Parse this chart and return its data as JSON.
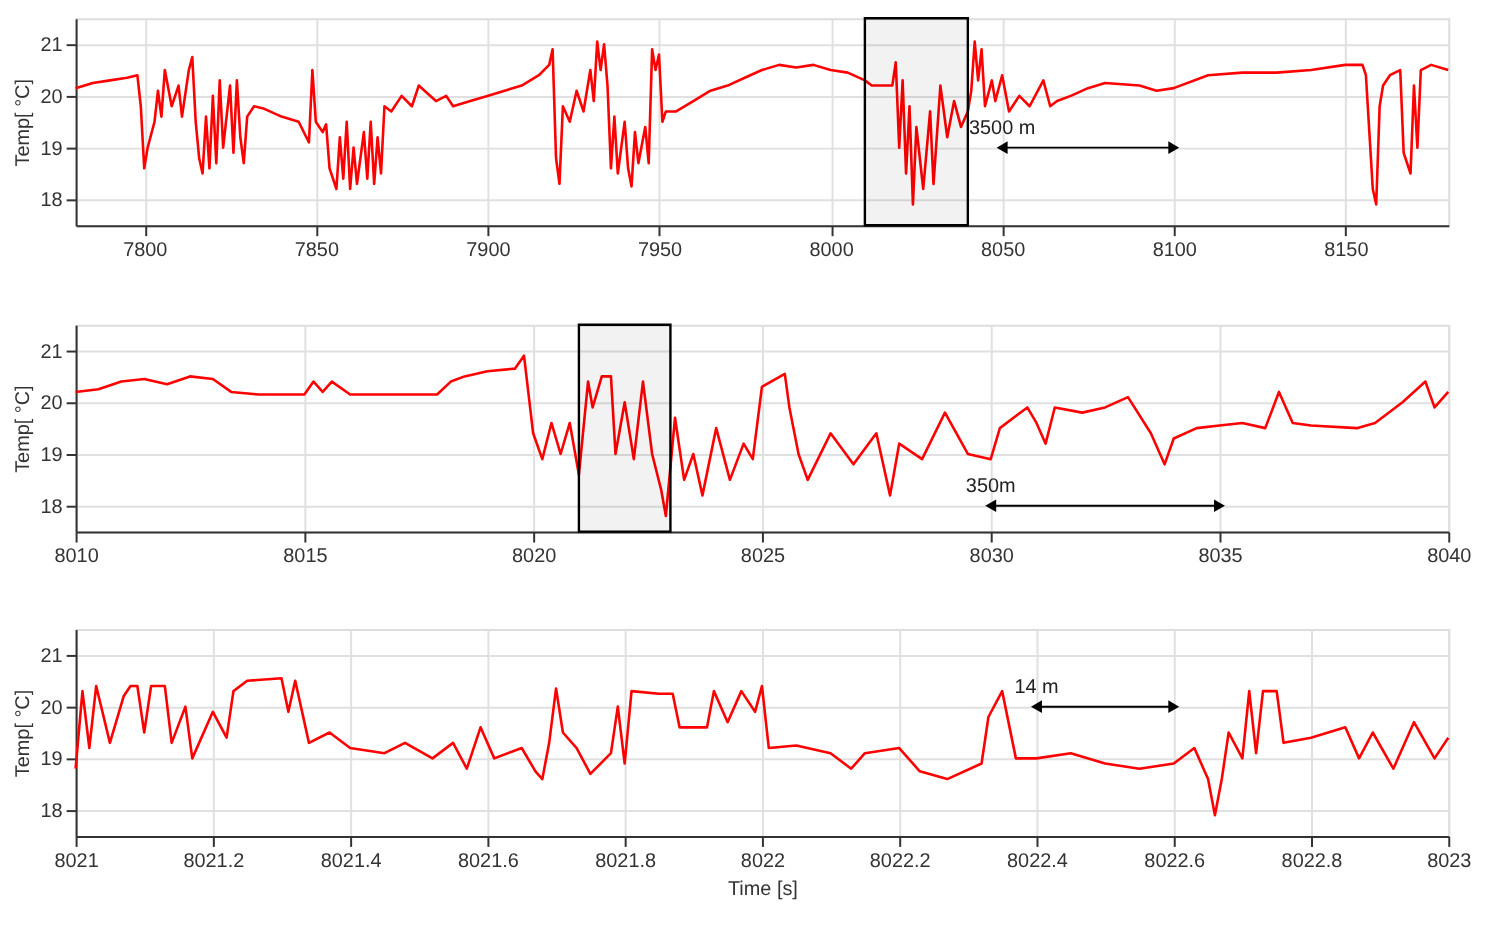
{
  "chart_data": [
    {
      "type": "line",
      "ylabel": "Temp[  °C]",
      "xlim": [
        7780,
        8180
      ],
      "xticks": [
        7800,
        7850,
        7900,
        7950,
        8000,
        8050,
        8100,
        8150
      ],
      "ylim": [
        17.5,
        21.5
      ],
      "yticks": [
        18,
        19,
        20,
        21
      ],
      "grid": true,
      "line_style": "solid",
      "series": [
        {
          "color": "#ff0000",
          "x": [
            7780,
            7785,
            7790,
            7795,
            7798,
            7799,
            7800,
            7801,
            7803,
            7804,
            7805,
            7806,
            7808,
            7810,
            7811,
            7813,
            7814,
            7815,
            7816,
            7817,
            7818,
            7819,
            7820,
            7821,
            7822,
            7823,
            7825,
            7826,
            7827,
            7828,
            7829,
            7830,
            7832,
            7835,
            7840,
            7845,
            7848,
            7849,
            7850,
            7852,
            7853,
            7854,
            7856,
            7857,
            7858,
            7859,
            7860,
            7861,
            7862,
            7864,
            7865,
            7866,
            7867,
            7868,
            7869,
            7870,
            7872,
            7875,
            7878,
            7880,
            7885,
            7888,
            7890,
            7895,
            7900,
            7905,
            7910,
            7915,
            7918,
            7919,
            7920,
            7921,
            7922,
            7924,
            7926,
            7928,
            7930,
            7931,
            7932,
            7933,
            7934,
            7935,
            7936,
            7937,
            7938,
            7940,
            7941,
            7942,
            7943,
            7944,
            7946,
            7947,
            7948,
            7949,
            7950,
            7951,
            7952,
            7955,
            7960,
            7965,
            7970,
            7975,
            7980,
            7985,
            7990,
            7995,
            8000,
            8005,
            8010,
            8012,
            8018,
            8019,
            8020,
            8021,
            8022,
            8023,
            8024,
            8025,
            8027,
            8029,
            8030,
            8032,
            8034,
            8036,
            8038,
            8040,
            8041,
            8042,
            8043,
            8044,
            8045,
            8047,
            8048,
            8050,
            8052,
            8055,
            8058,
            8062,
            8064,
            8066,
            8070,
            8075,
            8080,
            8090,
            8095,
            8100,
            8110,
            8120,
            8130,
            8140,
            8150,
            8155,
            8156,
            8158,
            8159,
            8160,
            8161,
            8163,
            8166,
            8167,
            8169,
            8170,
            8171,
            8172,
            8175,
            8180
          ],
          "values": [
            20.15,
            20.25,
            20.3,
            20.35,
            20.4,
            19.8,
            18.6,
            19.0,
            19.5,
            20.1,
            19.6,
            20.5,
            19.8,
            20.2,
            19.6,
            20.5,
            20.75,
            19.5,
            18.8,
            18.5,
            19.6,
            18.6,
            20.0,
            18.7,
            20.3,
            19.0,
            20.2,
            18.9,
            20.3,
            19.2,
            18.7,
            19.6,
            19.8,
            19.75,
            19.6,
            19.5,
            19.1,
            20.5,
            19.5,
            19.3,
            19.45,
            18.6,
            18.2,
            19.2,
            18.4,
            19.5,
            18.2,
            19.0,
            18.3,
            19.3,
            18.4,
            19.5,
            18.3,
            19.2,
            18.5,
            19.8,
            19.7,
            20.0,
            19.8,
            20.2,
            19.9,
            20.0,
            19.8,
            19.9,
            20.0,
            20.1,
            20.2,
            20.4,
            20.6,
            20.9,
            18.8,
            18.3,
            19.8,
            19.5,
            20.1,
            19.7,
            20.5,
            19.9,
            21.05,
            20.5,
            21.0,
            20.2,
            18.6,
            19.6,
            18.5,
            19.5,
            18.6,
            18.25,
            19.3,
            18.7,
            19.4,
            18.7,
            20.9,
            20.5,
            20.8,
            19.5,
            19.7,
            19.7,
            19.9,
            20.1,
            20.2,
            20.35,
            20.5,
            20.6,
            20.55,
            20.6,
            20.5,
            20.45,
            20.3,
            20.2,
            20.2,
            20.65,
            19.0,
            20.3,
            18.5,
            19.8,
            17.9,
            19.4,
            18.2,
            19.7,
            18.3,
            20.2,
            19.2,
            19.9,
            19.4,
            19.7,
            20.1,
            21.05,
            20.3,
            20.9,
            19.8,
            20.3,
            19.9,
            20.4,
            19.7,
            20.0,
            19.8,
            20.3,
            19.8,
            19.9,
            20.0,
            20.15,
            20.25,
            20.2,
            20.1,
            20.15,
            20.4,
            20.45,
            20.45,
            20.5,
            20.6,
            20.6,
            20.4,
            18.2,
            17.9,
            19.8,
            20.2,
            20.4,
            20.5,
            18.9,
            18.5,
            20.2,
            19.0,
            20.5,
            20.6,
            20.5
          ]
        },
        {
          "type": "line",
          "color": "#000000",
          "marker": "triangle",
          "x": [
            8050,
            8100
          ],
          "values": [
            19,
            19
          ]
        }
      ],
      "bands": [
        {
          "axis": "x",
          "from": 8010,
          "to": 8040,
          "color": "#000000"
        }
      ],
      "annotations": [
        {
          "text": "3500 m",
          "x": 8050,
          "y": 19
        }
      ]
    },
    {
      "type": "line",
      "ylabel": "Temp[  °C]",
      "xlim": [
        8010,
        8040
      ],
      "xticks": [
        8010,
        8015,
        8020,
        8025,
        8030,
        8035,
        8040
      ],
      "ylim": [
        17.5,
        21.5
      ],
      "yticks": [
        18,
        19,
        20,
        21
      ],
      "grid": true,
      "line_style": "solid",
      "series": [
        {
          "color": "#ff0000",
          "x": [
            8010,
            8010.5,
            8011,
            8011.5,
            8012,
            8012.5,
            8013,
            8013.4,
            8014,
            8015,
            8015.2,
            8015.4,
            8015.6,
            8016,
            8017,
            8017.9,
            8018.2,
            8018.5,
            8019,
            8019.6,
            8019.8,
            8020,
            8020.2,
            8020.4,
            8020.6,
            8020.8,
            8021,
            8021.2,
            8021.3,
            8021.5,
            8021.7,
            8021.8,
            8022,
            8022.2,
            8022.4,
            8022.6,
            8022.8,
            8022.9,
            8023.1,
            8023.3,
            8023.5,
            8023.7,
            8024,
            8024.3,
            8024.6,
            8024.8,
            8025,
            8025.5,
            8025.6,
            8025.8,
            8026,
            8026.5,
            8027,
            8027.5,
            8027.8,
            8028,
            8028.5,
            8029,
            8029.5,
            8030,
            8030.2,
            8030.8,
            8031,
            8031.2,
            8031.4,
            8032,
            8032.5,
            8033,
            8033.5,
            8033.8,
            8034,
            8034.5,
            8035,
            8035.5,
            8036,
            8036.3,
            8036.6,
            8037,
            8038,
            8038.4,
            8039,
            8039.5,
            8039.7,
            8040
          ],
          "values": [
            20.2,
            20.25,
            20.4,
            20.45,
            20.35,
            20.5,
            20.45,
            20.2,
            20.15,
            20.15,
            20.4,
            20.2,
            20.4,
            20.15,
            20.15,
            20.15,
            20.4,
            20.5,
            20.6,
            20.65,
            20.9,
            19.4,
            18.9,
            19.6,
            19.0,
            19.6,
            18.6,
            20.4,
            19.9,
            20.5,
            20.5,
            19.0,
            20.0,
            18.9,
            20.4,
            19.0,
            18.3,
            17.8,
            19.7,
            18.5,
            19.0,
            18.2,
            19.5,
            18.5,
            19.2,
            18.9,
            20.3,
            20.55,
            19.9,
            19.0,
            18.5,
            19.4,
            18.8,
            19.4,
            18.2,
            19.2,
            18.9,
            19.8,
            19.0,
            18.9,
            19.5,
            19.9,
            19.6,
            19.2,
            19.9,
            19.8,
            19.9,
            20.1,
            19.4,
            18.8,
            19.3,
            19.5,
            19.55,
            19.6,
            19.5,
            20.2,
            19.6,
            19.55,
            19.5,
            19.6,
            20.0,
            20.4,
            19.9,
            20.2
          ]
        },
        {
          "type": "line",
          "color": "#000000",
          "marker": "triangle",
          "x": [
            8030,
            8035
          ],
          "values": [
            18,
            18
          ]
        }
      ],
      "bands": [
        {
          "axis": "x",
          "from": 8021,
          "to": 8023,
          "color": "#000000"
        }
      ],
      "annotations": [
        {
          "text": "350m",
          "x": 8030,
          "y": 18
        }
      ]
    },
    {
      "type": "line",
      "ylabel": "Temp[  °C]",
      "xlabel": "Time [s]",
      "xlim": [
        8021,
        8023
      ],
      "xticks": [
        8021,
        8021.2,
        8021.4,
        8021.6,
        8021.8,
        8022,
        8022.2,
        8022.4,
        8022.6,
        8022.8,
        8023
      ],
      "ylim": [
        17.5,
        21.5
      ],
      "yticks": [
        18,
        19,
        20,
        21
      ],
      "grid": true,
      "line_style": "solid",
      "series": [
        {
          "color": "#ff0000",
          "x": [
            8021,
            8021.01,
            8021.02,
            8021.03,
            8021.05,
            8021.07,
            8021.08,
            8021.09,
            8021.1,
            8021.11,
            8021.13,
            8021.14,
            8021.16,
            8021.17,
            8021.2,
            8021.22,
            8021.23,
            8021.25,
            8021.3,
            8021.31,
            8021.32,
            8021.34,
            8021.37,
            8021.4,
            8021.45,
            8021.48,
            8021.52,
            8021.55,
            8021.57,
            8021.59,
            8021.61,
            8021.65,
            8021.67,
            8021.68,
            8021.69,
            8021.7,
            8021.71,
            8021.73,
            8021.75,
            8021.78,
            8021.79,
            8021.8,
            8021.81,
            8021.85,
            8021.87,
            8021.88,
            8021.92,
            8021.93,
            8021.95,
            8021.97,
            8021.99,
            8022.0,
            8022.01,
            8022.05,
            8022.1,
            8022.13,
            8022.15,
            8022.2,
            8022.23,
            8022.27,
            8022.32,
            8022.33,
            8022.35,
            8022.37,
            8022.4,
            8022.45,
            8022.5,
            8022.55,
            8022.6,
            8022.63,
            8022.65,
            8022.66,
            8022.67,
            8022.68,
            8022.7,
            8022.71,
            8022.72,
            8022.73,
            8022.75,
            8022.76,
            8022.8,
            8022.85,
            8022.87,
            8022.89,
            8022.92,
            8022.95,
            8022.98,
            8023
          ],
          "values": [
            18.8,
            20.3,
            19.2,
            20.4,
            19.3,
            20.2,
            20.4,
            20.4,
            19.5,
            20.4,
            20.4,
            19.3,
            20.0,
            19.0,
            19.9,
            19.4,
            20.3,
            20.5,
            20.55,
            19.9,
            20.5,
            19.3,
            19.5,
            19.2,
            19.1,
            19.3,
            19.0,
            19.3,
            18.8,
            19.6,
            19.0,
            19.2,
            18.75,
            18.6,
            19.3,
            20.35,
            19.5,
            19.2,
            18.7,
            19.1,
            20.0,
            18.9,
            20.3,
            20.25,
            20.25,
            19.6,
            19.6,
            20.3,
            19.7,
            20.3,
            19.9,
            20.4,
            19.2,
            19.25,
            19.1,
            18.8,
            19.1,
            19.2,
            18.75,
            18.6,
            18.9,
            19.8,
            20.3,
            19.0,
            19.0,
            19.1,
            18.9,
            18.8,
            18.9,
            19.2,
            18.6,
            17.9,
            18.6,
            19.5,
            19.0,
            20.3,
            19.1,
            20.3,
            20.3,
            19.3,
            19.4,
            19.6,
            19.0,
            19.5,
            18.8,
            19.7,
            19.0,
            19.4
          ]
        },
        {
          "type": "line",
          "color": "#000000",
          "marker": "triangle",
          "x": [
            8022.4,
            8022.6
          ],
          "values": [
            20,
            20
          ]
        }
      ],
      "annotations": [
        {
          "text": "14 m",
          "x": 8022.4,
          "y": 20
        }
      ]
    }
  ]
}
